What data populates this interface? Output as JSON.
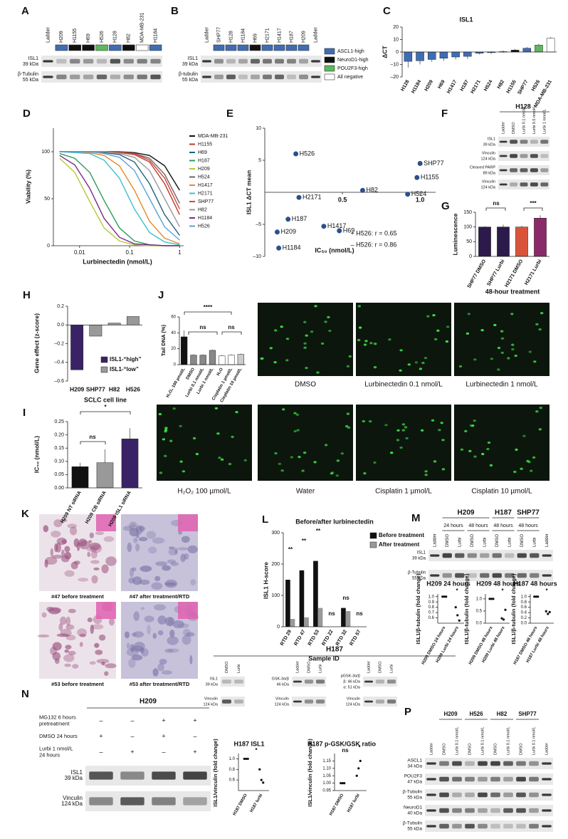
{
  "A": {
    "letter": "A",
    "lanes": [
      "Ladder",
      "H209",
      "H1155",
      "H69",
      "H526",
      "H128",
      "H82",
      "MDA-MB-231",
      "H1184"
    ],
    "lane_colors": [
      null,
      "#3f6db5",
      "#111111",
      "#111111",
      "#5cb85c",
      "#3f6db5",
      "#111111",
      "#ffffff",
      "#3f6db5"
    ],
    "rows": [
      [
        "ISL1",
        "39 kDa"
      ],
      [
        "β-Tubulin",
        "55 kDa"
      ]
    ]
  },
  "B": {
    "letter": "B",
    "lanes": [
      "Ladder",
      "SHP77",
      "H128",
      "H1184",
      "H69",
      "H2171",
      "H1417",
      "H187",
      "H209",
      "Ladder"
    ],
    "lane_colors": [
      null,
      "#3f6db5",
      "#3f6db5",
      "#3f6db5",
      "#111111",
      "#3f6db5",
      "#3f6db5",
      "#3f6db5",
      "#3f6db5",
      null
    ],
    "rows": [
      [
        "ISL1",
        "39 kDa"
      ],
      [
        "β-tubulin",
        "55 kDa"
      ]
    ],
    "legend": [
      {
        "label": "ASCL1-high",
        "color": "#3f6db5"
      },
      {
        "label": "NeuroD1-high",
        "color": "#111111"
      },
      {
        "label": "POU2F3-high",
        "color": "#5cb85c"
      },
      {
        "label": "All negative",
        "color": "#ffffff"
      }
    ]
  },
  "F": {
    "letter": "F",
    "title": "H128",
    "lanes": [
      "Ladder",
      "DMSO",
      "Lurbi 0.1 nmol/L",
      "Lurbi 0.5 nmol/L",
      "Lurbi 1 nmol/L"
    ],
    "rows": [
      [
        "ISL1",
        "39 kDa"
      ],
      [
        "Vinculin",
        "124 kDa"
      ],
      [
        "Cleaved PARP",
        "89 kDa"
      ],
      [
        "Vinculin",
        "124 kDa"
      ]
    ]
  },
  "comet_images": {
    "labels": [
      "DMSO",
      "Lurbinectedin 0.1 nmol/L",
      "Lurbinectedin 1 nmol/L",
      "H₂O₂ 100 µmol/L",
      "Water",
      "Cisplatin 1 µmol/L",
      "Cisplatin 10 µmol/L"
    ]
  },
  "K": {
    "letter": "K",
    "captions": [
      "#47 before treatment",
      "#47 after treatment/RTD",
      "#53 before treatment",
      "#53 after treatment/RTD"
    ]
  },
  "M": {
    "letter": "M",
    "groups": [
      "H209",
      "H187",
      "SHP77"
    ],
    "times": [
      "24 hours",
      "48 hours",
      "48 hours",
      "48 hours"
    ],
    "lanes": [
      "Ladder",
      "DMSO",
      "Lurbi",
      "DMSO",
      "Lurbi",
      "DMSO",
      "Lurbi",
      "DMSO",
      "Lurbi",
      "Ladder"
    ],
    "rows": [
      [
        "ISL1",
        "39 kDa"
      ],
      [
        "β-Tubulin",
        "55 kDa"
      ]
    ]
  },
  "N": {
    "letter": "N",
    "title": "H209",
    "conditions": [
      {
        "label": [
          "MG132 6 hours",
          "pretreatment"
        ],
        "marks": [
          "–",
          "–",
          "+",
          "+"
        ]
      },
      {
        "label": [
          "DMSO 24 hours"
        ],
        "marks": [
          "+",
          "–",
          "+",
          "–"
        ]
      },
      {
        "label": [
          "Lurbi 1 nmol/L",
          "24 hours"
        ],
        "marks": [
          "–",
          "+",
          "–",
          "+"
        ]
      }
    ],
    "rows": [
      [
        "ISL1",
        "39 kDa"
      ],
      [
        "Vinculin",
        "124 kDa"
      ]
    ]
  },
  "O": {
    "letter": "O",
    "title": "H187",
    "blots": [
      {
        "lanes": [
          "DMSO",
          "Lurbi"
        ],
        "rows": [
          [
            "ISL1",
            "39 kDa"
          ],
          [
            "Vinculin",
            "124 kDa"
          ]
        ]
      },
      {
        "lanes": [
          "Ladder",
          "DMSO",
          "Lurbi"
        ],
        "rows": [
          [
            "GSK-3α/β",
            "46 kDa"
          ],
          [
            "Vinculin",
            "124 kDa"
          ]
        ]
      },
      {
        "lanes": [
          "Ladder",
          "DMSO",
          "Lurbi"
        ],
        "rows": [
          [
            "pGSK-3α/β",
            "β: 46 kDa",
            "α: 51 kDa"
          ],
          [
            "Vinculin",
            "124 kDa"
          ]
        ]
      }
    ]
  },
  "P": {
    "letter": "P",
    "groups": [
      "H209",
      "H526",
      "H82",
      "SHP77"
    ],
    "lanes": [
      "Ladder",
      "DMSO",
      "Lurbi 0.1 nmol/L",
      "DMSO",
      "Lurbi 0.1 nmol/L",
      "DMSO",
      "Lurbi 0.1 nmol/L",
      "DMSO",
      "Lurbi 0.1 nmol/L",
      "Ladder"
    ],
    "rows": [
      [
        "ASCL1",
        "34 kDa"
      ],
      [
        "POU2F3",
        "47 kDa"
      ],
      [
        "β-Tubulin",
        "55 kDa"
      ],
      [
        "NeuroD1",
        "40 kDa"
      ],
      [
        "β-Tubulin",
        "55 kDa"
      ]
    ]
  },
  "chart_data": [
    {
      "type": "bar",
      "letter": "C",
      "title": "ISL1",
      "ylabel": "ΔCT",
      "categories": [
        "H128",
        "H1184",
        "H209",
        "H69",
        "H1417",
        "H187",
        "H2171",
        "H524",
        "H82",
        "H1155",
        "SHP77",
        "H526",
        "MDA-MB-231"
      ],
      "values": [
        -7.5,
        -7,
        -6,
        -5,
        -4,
        -3.5,
        -1,
        -0.5,
        0.3,
        1.5,
        3,
        5.5,
        11
      ],
      "errors": [
        5,
        3,
        2,
        2,
        2,
        2,
        1,
        1,
        1,
        1,
        1,
        1,
        1
      ],
      "colors": [
        "#3f6db5",
        "#3f6db5",
        "#3f6db5",
        "#3f6db5",
        "#3f6db5",
        "#3f6db5",
        "#3f6db5",
        "#3f6db5",
        "#111111",
        "#111111",
        "#3f6db5",
        "#5cb85c",
        "#ffffff"
      ],
      "ylim": [
        -20,
        20
      ],
      "yticks": [
        {
          "value": -20,
          "label": "–20"
        },
        {
          "value": -10,
          "label": "–10"
        },
        0,
        10,
        20
      ]
    },
    {
      "type": "line",
      "letter": "D",
      "xlabel": "Lurbinectedin (nmol/L)",
      "ylabel": "Viability (%)",
      "log_x": true,
      "x": [
        0.004,
        0.008,
        0.016,
        0.031,
        0.0625,
        0.125,
        0.25,
        0.5,
        1
      ],
      "xlim": [
        0.003,
        1.2
      ],
      "xticks": [
        0.01,
        0.1,
        1
      ],
      "ylim": [
        0,
        125
      ],
      "yticks": [
        0,
        50,
        100
      ],
      "series": [
        {
          "name": "MDA-MB-231",
          "color": "#111111",
          "values": [
            100,
            100,
            100,
            100,
            100,
            99,
            96,
            85,
            59
          ]
        },
        {
          "name": "H1155",
          "color": "#c0392b",
          "values": [
            100,
            100,
            100,
            100,
            99,
            97,
            89,
            66,
            33
          ]
        },
        {
          "name": "H69",
          "color": "#1f5f7a",
          "values": [
            100,
            100,
            100,
            99,
            97,
            89,
            66,
            33,
            11
          ]
        },
        {
          "name": "H187",
          "color": "#2a9d5c",
          "values": [
            98,
            93,
            78,
            48,
            19,
            5,
            1,
            0,
            0
          ]
        },
        {
          "name": "H209",
          "color": "#b5c93a",
          "values": [
            93,
            78,
            47,
            19,
            5,
            1,
            0,
            0,
            0
          ]
        },
        {
          "name": "H524",
          "color": "#666666",
          "values": [
            100,
            100,
            100,
            100,
            100,
            98,
            93,
            76,
            45
          ]
        },
        {
          "name": "H1417",
          "color": "#e58b2a",
          "values": [
            100,
            100,
            99,
            96,
            85,
            59,
            26,
            8,
            2
          ]
        },
        {
          "name": "H2171",
          "color": "#3cc0c9",
          "values": [
            100,
            99,
            98,
            91,
            72,
            39,
            14,
            4,
            1
          ]
        },
        {
          "name": "SHP77",
          "color": "#d9433b",
          "values": [
            100,
            100,
            100,
            100,
            99,
            98,
            91,
            72,
            39
          ]
        },
        {
          "name": "H82",
          "color": "#999999",
          "values": [
            100,
            100,
            100,
            100,
            98,
            94,
            80,
            50,
            20
          ]
        },
        {
          "name": "H1184",
          "color": "#7b2a8a",
          "values": [
            96,
            86,
            61,
            29,
            9,
            2,
            1,
            0,
            0
          ]
        },
        {
          "name": "H526",
          "color": "#5aa0d8",
          "values": [
            100,
            100,
            100,
            98,
            94,
            80,
            50,
            20,
            6
          ]
        }
      ]
    },
    {
      "type": "scatter",
      "letter": "E",
      "xlabel": "IC₅₀ (nmol/L)",
      "ylabel": "ISL1 ΔCT mean",
      "color": "#2e4f8a",
      "labels": [
        "H526",
        "SHP77",
        "H1155",
        "H82",
        "H524",
        "H2171",
        "H187",
        "H1417",
        "H69",
        "H209",
        "H1184"
      ],
      "x": [
        0.2,
        1.0,
        0.98,
        0.63,
        0.92,
        0.22,
        0.15,
        0.38,
        0.48,
        0.08,
        0.09
      ],
      "values": [
        6,
        4.5,
        2.3,
        0.3,
        -0.3,
        -0.8,
        -4.2,
        -5.3,
        -6,
        -6.2,
        -8.7
      ],
      "xlim": [
        0,
        1.1
      ],
      "xticks": [
        0.5,
        {
          "value": 1,
          "label": "1.0"
        }
      ],
      "ylim": [
        -10,
        10
      ],
      "yticks": [
        {
          "value": -10,
          "label": "–10"
        },
        {
          "value": -5,
          "label": "–5"
        },
        5,
        10
      ],
      "annotations": [
        "+ H526: r = 0.65",
        "– H526: r = 0.86"
      ]
    },
    {
      "type": "bar",
      "letter": "G",
      "xlabel": "48-hour treatment",
      "ylabel": "Luminescence",
      "categories": [
        "SHP77 DMSO",
        "SHP77 Lurbi",
        "H2171 DMSO",
        "H2171 Lurbi"
      ],
      "values": [
        100,
        100,
        100,
        130
      ],
      "errors": [
        3,
        8,
        4,
        10
      ],
      "colors": [
        "#2b1a4a",
        "#2b1a4a",
        "#d9533b",
        "#8a2a6a"
      ],
      "ylim": [
        0,
        150
      ],
      "yticks": [
        0,
        50,
        100,
        150
      ],
      "annotations": [
        "ns",
        "***"
      ]
    },
    {
      "type": "bar",
      "letter": "H",
      "xlabel": "SCLC cell line",
      "ylabel": "Gene effect (z-score)",
      "categories": [
        "H209",
        "SHP77",
        "H82",
        "H526"
      ],
      "values": [
        -0.48,
        -0.12,
        0.02,
        0.09
      ],
      "colors": [
        "#3a2266",
        "#999999",
        "#999999",
        "#999999"
      ],
      "legend": [
        {
          "label": "ISL1-“high”",
          "color": "#3a2266"
        },
        {
          "label": "ISL1-“low”",
          "color": "#999999"
        }
      ],
      "ylim": [
        -0.6,
        0.2
      ],
      "yticks": [
        {
          "value": -0.6,
          "label": "–0.6"
        },
        {
          "value": -0.4,
          "label": "–0.4"
        },
        {
          "value": -0.2,
          "label": "–0.2"
        },
        {
          "value": 0,
          "label": "0.0"
        },
        0.2
      ]
    },
    {
      "type": "bar",
      "letter": "I",
      "ylabel": "IC₅₀ (nmol/L)",
      "categories": [
        "H209 NT siRNA",
        "H209 CB siRNA",
        "H209 ISL1 siRNA"
      ],
      "values": [
        0.08,
        0.095,
        0.185
      ],
      "errors": [
        0.015,
        0.05,
        0.04
      ],
      "colors": [
        "#111111",
        "#999999",
        "#3a2266"
      ],
      "ylim": [
        0,
        0.25
      ],
      "yticks": [
        {
          "value": 0,
          "label": "0.00"
        },
        0.05,
        {
          "value": 0.1,
          "label": "0.10"
        },
        0.15,
        {
          "value": 0.2,
          "label": "0.20"
        },
        0.25
      ],
      "annotations": [
        "ns",
        "*"
      ]
    },
    {
      "type": "bar",
      "letter": "J",
      "ylabel": "Tail DNA (%)",
      "categories": [
        "H₂O₂ 100 µmol/L",
        "DMSO",
        "Lurbi 0.1 nmol/L",
        "Lurbi 1 nmol/L",
        "H₂O",
        "Cisplatin 1 µmol/L",
        "Cisplatin 10 µmol/L"
      ],
      "values": [
        35,
        12,
        12,
        18,
        11,
        12,
        13
      ],
      "errors": [
        8,
        1,
        1,
        1,
        1,
        1,
        1
      ],
      "colors": [
        "#111111",
        "#888888",
        "#888888",
        "#888888",
        "#ffffff",
        "#ffffff",
        "#cccccc"
      ],
      "ylim": [
        0,
        60
      ],
      "yticks": [
        0,
        20,
        40,
        60
      ],
      "annotations": [
        "****",
        "ns",
        "ns"
      ]
    },
    {
      "type": "grouped_bar",
      "letter": "L",
      "title": "Before/after lurbinectedin",
      "xlabel": "Sample ID",
      "ylabel": "ISL1 H-score",
      "categories": [
        "RTD 29",
        "RTD 47",
        "RTD 53",
        "RTD 22",
        "RTD 32",
        "RTD 57"
      ],
      "series": [
        {
          "name": "Before treatment",
          "color": "#111111",
          "values": [
            150,
            180,
            210,
            0,
            60,
            0
          ]
        },
        {
          "name": "After treatment",
          "color": "#999999",
          "values": [
            25,
            30,
            60,
            0,
            50,
            0
          ]
        }
      ],
      "ylim": [
        0,
        300
      ],
      "yticks": [
        0,
        100,
        200,
        300
      ],
      "annotations": [
        "**",
        "**",
        "**",
        "ns",
        "ns",
        "ns"
      ]
    },
    {
      "type": "strip",
      "title": "H209 24 hours",
      "ylabel": "ISL1/β-tubulin (fold change)",
      "categories": [
        "H209 DMSO 24 hours",
        "H209 Lurbi 24 hours"
      ],
      "values": [
        [
          1,
          1,
          1
        ],
        [
          0.8,
          0.65,
          0.55
        ]
      ],
      "ylim": [
        0.5,
        1.05
      ],
      "yticks": [
        0.6,
        0.7,
        0.8,
        0.9,
        {
          "value": 1,
          "label": "1.0"
        }
      ],
      "annotations": [
        "*"
      ]
    },
    {
      "type": "strip",
      "title": "H209 48 hours",
      "ylabel": "ISL1/β-tubulin (fold change)",
      "categories": [
        "H209 DMSO 48 hours",
        "H209 Lurbi 48 hours"
      ],
      "values": [
        [
          1,
          1,
          1
        ],
        [
          0.2,
          0.15,
          0.55
        ]
      ],
      "ylim": [
        0,
        1.2
      ],
      "yticks": [
        {
          "value": 0,
          "label": "0.0"
        },
        0.5,
        {
          "value": 1,
          "label": "1.0"
        }
      ],
      "annotations": [
        "*"
      ]
    },
    {
      "type": "strip",
      "title": "H187 48 hours",
      "ylabel": "ISL1/β-tubulin (fold change)",
      "categories": [
        "H187 DMSO 48 hours",
        "H187 Lurbi 48 hours"
      ],
      "values": [
        [
          1,
          1,
          1
        ],
        [
          0.45,
          0.35,
          0.42
        ]
      ],
      "ylim": [
        0,
        1.1
      ],
      "yticks": [
        {
          "value": 0,
          "label": "0.0"
        },
        0.2,
        0.4,
        0.6,
        0.8,
        {
          "value": 1,
          "label": "1.0"
        }
      ],
      "annotations": [
        "*"
      ]
    },
    {
      "type": "strip",
      "title": "H187 ISL1",
      "ylabel": "ISL1/vinculin (fold change)",
      "categories": [
        "H187 DMSO",
        "H187 lurbi"
      ],
      "values": [
        [
          1,
          1,
          1
        ],
        [
          0.8,
          0.6,
          0.55
        ]
      ],
      "ylim": [
        0.4,
        1.1
      ],
      "yticks": [
        0.6,
        0.8,
        {
          "value": 1,
          "label": "1.0"
        }
      ],
      "annotations": [
        "*"
      ]
    },
    {
      "type": "strip",
      "title": "H187 p-GSK/GSK ratio",
      "ylabel": "ISL1/vinculin (fold change)",
      "categories": [
        "H187 DMSO",
        "H187 lurbi"
      ],
      "values": [
        [
          1,
          1,
          1
        ],
        [
          1.05,
          1.1,
          1.15
        ]
      ],
      "ylim": [
        0.95,
        1.2
      ],
      "yticks": [
        0.95,
        {
          "value": 1,
          "label": "1.00"
        },
        1.05,
        {
          "value": 1.1,
          "label": "1.10"
        },
        1.15
      ],
      "annotations": [
        "ns",
        "*"
      ]
    }
  ]
}
